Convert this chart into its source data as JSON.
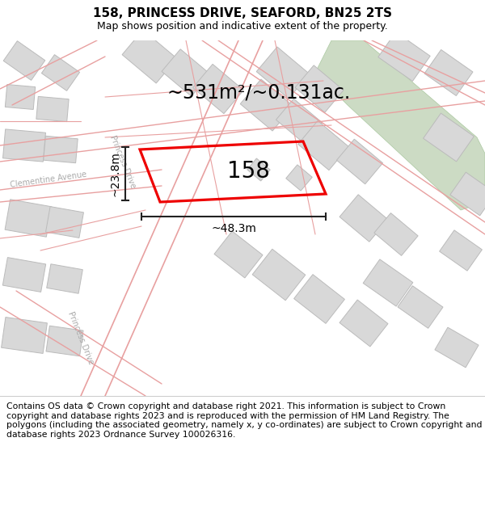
{
  "title_line1": "158, PRINCESS DRIVE, SEAFORD, BN25 2TS",
  "title_line2": "Map shows position and indicative extent of the property.",
  "copyright_text": "Contains OS data © Crown copyright and database right 2021. This information is subject to Crown copyright and database rights 2023 and is reproduced with the permission of HM Land Registry. The polygons (including the associated geometry, namely x, y co-ordinates) are subject to Crown copyright and database rights 2023 Ordnance Survey 100026316.",
  "area_label": "~531m²/~0.131ac.",
  "property_number": "158",
  "width_label": "~48.3m",
  "height_label": "~23.8m",
  "map_bg": "#f8f8f8",
  "road_line_color": "#e8a0a0",
  "building_fill": "#d8d8d8",
  "building_edge": "#bbbbbb",
  "property_color": "#ee0000",
  "green_fill": "#ccdbc4",
  "green_edge": "#aac8a0",
  "dim_color": "#222222",
  "street_label_color": "#aaaaaa",
  "title_fontsize": 11,
  "subtitle_fontsize": 9,
  "copyright_fontsize": 7.8,
  "label_fontsize": 20,
  "area_fontsize": 17,
  "dim_fontsize": 10
}
